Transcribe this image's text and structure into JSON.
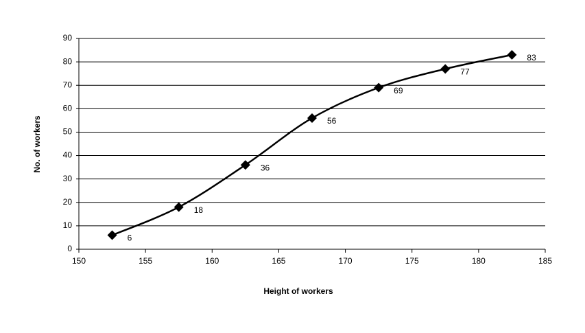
{
  "chart_data": {
    "type": "line",
    "x_label": "Height of workers",
    "y_label": "No. of workers",
    "x": [
      152.5,
      157.5,
      162.5,
      167.5,
      172.5,
      177.5,
      182.5
    ],
    "values": [
      6,
      18,
      36,
      56,
      69,
      77,
      83
    ],
    "color": "#000000",
    "smooth": true,
    "marker": "diamond",
    "grid": true,
    "xlim": [
      150,
      185
    ],
    "xticks": [
      150,
      155,
      160,
      165,
      170,
      175,
      180,
      185
    ],
    "ylim": [
      0,
      90
    ],
    "yticks": [
      0,
      10,
      20,
      30,
      40,
      50,
      60,
      70,
      80,
      90
    ]
  }
}
